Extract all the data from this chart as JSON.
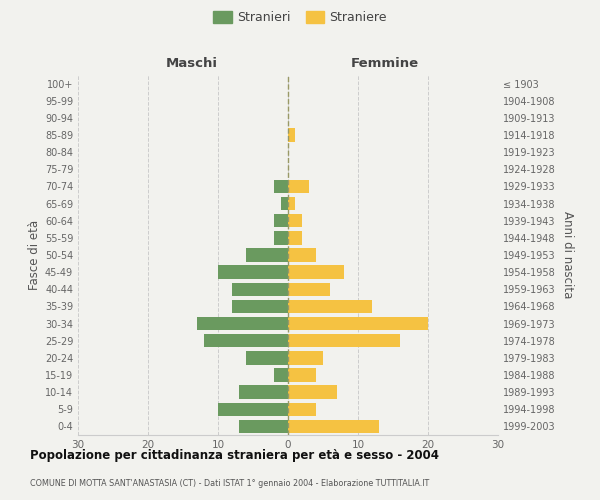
{
  "age_groups": [
    "0-4",
    "5-9",
    "10-14",
    "15-19",
    "20-24",
    "25-29",
    "30-34",
    "35-39",
    "40-44",
    "45-49",
    "50-54",
    "55-59",
    "60-64",
    "65-69",
    "70-74",
    "75-79",
    "80-84",
    "85-89",
    "90-94",
    "95-99",
    "100+"
  ],
  "birth_years": [
    "1999-2003",
    "1994-1998",
    "1989-1993",
    "1984-1988",
    "1979-1983",
    "1974-1978",
    "1969-1973",
    "1964-1968",
    "1959-1963",
    "1954-1958",
    "1949-1953",
    "1944-1948",
    "1939-1943",
    "1934-1938",
    "1929-1933",
    "1924-1928",
    "1919-1923",
    "1914-1918",
    "1909-1913",
    "1904-1908",
    "≤ 1903"
  ],
  "males": [
    7,
    10,
    7,
    2,
    6,
    12,
    13,
    8,
    8,
    10,
    6,
    2,
    2,
    1,
    2,
    0,
    0,
    0,
    0,
    0,
    0
  ],
  "females": [
    13,
    4,
    7,
    4,
    5,
    16,
    20,
    12,
    6,
    8,
    4,
    2,
    2,
    1,
    3,
    0,
    0,
    1,
    0,
    0,
    0
  ],
  "male_color": "#6a9a5f",
  "female_color": "#f5c242",
  "background_color": "#f2f2ee",
  "grid_color": "#cccccc",
  "center_line_color": "#999966",
  "xlim": 30,
  "title": "Popolazione per cittadinanza straniera per età e sesso - 2004",
  "subtitle": "COMUNE DI MOTTA SANT'ANASTASIA (CT) - Dati ISTAT 1° gennaio 2004 - Elaborazione TUTTITALIA.IT",
  "xlabel_left": "Maschi",
  "xlabel_right": "Femmine",
  "ylabel_left": "Fasce di età",
  "ylabel_right": "Anni di nascita",
  "legend_stranieri": "Stranieri",
  "legend_straniere": "Straniere"
}
